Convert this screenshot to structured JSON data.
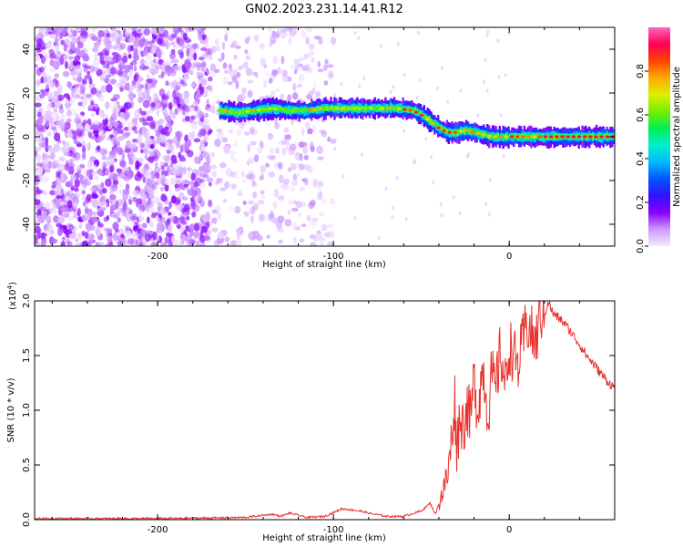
{
  "title": "GN02.2023.231.14.41.R12",
  "chart_data": [
    {
      "type": "heatmap",
      "xlabel": "Height of straight line (km)",
      "ylabel": "Frequency (Hz)",
      "xlim": [
        -270,
        60
      ],
      "ylim": [
        -50,
        50
      ],
      "xticks": [
        -200,
        -100,
        0
      ],
      "yticks": [
        -40,
        -20,
        0,
        20,
        40
      ],
      "colorbar": {
        "label": "Normalized spectral amplitude",
        "range": [
          0,
          1
        ],
        "ticks": [
          0.0,
          0.2,
          0.4,
          0.6,
          0.8
        ],
        "colormap": [
          "#f4e8ff",
          "#cc99ff",
          "#8800ff",
          "#3311ff",
          "#0055ff",
          "#00bbff",
          "#00eecc",
          "#00ee55",
          "#77ee00",
          "#ddee00",
          "#ffaa00",
          "#ff4400",
          "#ff0055",
          "#ff66bb"
        ]
      },
      "noise_region": {
        "x_range": [
          -270,
          -100
        ],
        "note_x_dense": [
          -270,
          -170
        ]
      },
      "ridge": {
        "x": [
          -165,
          -155,
          -145,
          -135,
          -125,
          -115,
          -105,
          -95,
          -85,
          -75,
          -65,
          -55,
          -50,
          -45,
          -40,
          -35,
          -30,
          -25,
          -20,
          -15,
          -10,
          -5,
          0,
          10,
          20,
          30,
          40,
          50,
          60
        ],
        "frequency": [
          12,
          11,
          12,
          13,
          12,
          12,
          13,
          13,
          13,
          13,
          13,
          12,
          10,
          7,
          4,
          2,
          2,
          3,
          2,
          1,
          0,
          0,
          0,
          0,
          0,
          0,
          0,
          0,
          0
        ]
      }
    },
    {
      "type": "line",
      "xlabel": "Height of straight line (km)",
      "ylabel": "SNR (10 * v/v)",
      "y_exponent": "(x10",
      "y_exponent_power": "4",
      "y_exponent_close": ")",
      "xlim": [
        -270,
        60
      ],
      "ylim": [
        0,
        2.0
      ],
      "xticks": [
        -200,
        -100,
        0
      ],
      "yticks": [
        0.0,
        0.5,
        1.0,
        1.5,
        2.0
      ],
      "series_color": "#e8322c",
      "series": [
        {
          "x": [
            -270,
            -240,
            -200,
            -170,
            -150,
            -135,
            -130,
            -125,
            -115,
            -105,
            -95,
            -85,
            -80,
            -70,
            -60,
            -50,
            -45,
            -42,
            -38,
            -35,
            -33,
            -31,
            -30,
            -28,
            -26,
            -24,
            -22,
            -20,
            -18,
            -15,
            -12,
            -10,
            -8,
            -5,
            -2,
            0,
            5,
            10,
            15,
            18,
            20,
            22,
            25,
            30,
            35,
            40,
            45,
            50,
            55,
            60
          ],
          "y": [
            0.01,
            0.01,
            0.01,
            0.015,
            0.02,
            0.05,
            0.03,
            0.06,
            0.02,
            0.03,
            0.1,
            0.08,
            0.06,
            0.03,
            0.03,
            0.08,
            0.15,
            0.05,
            0.25,
            0.4,
            0.7,
            1.12,
            0.65,
            0.95,
            0.85,
            1.05,
            0.9,
            1.3,
            1.0,
            1.4,
            0.95,
            1.35,
            1.15,
            1.55,
            1.2,
            1.6,
            1.4,
            1.8,
            1.6,
            1.9,
            1.85,
            2.0,
            1.88,
            1.82,
            1.72,
            1.6,
            1.48,
            1.38,
            1.28,
            1.2
          ]
        }
      ]
    }
  ]
}
